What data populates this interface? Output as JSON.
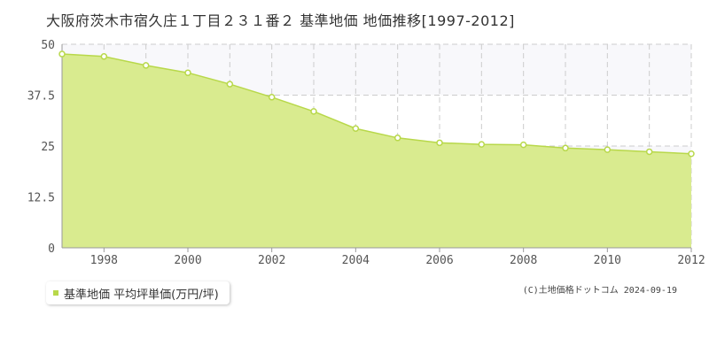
{
  "title": "大阪府茨木市宿久庄１丁目２３１番２ 基準地価 地価推移[1997-2012]",
  "legend": {
    "label": "基準地価 平均坪単価(万円/坪)"
  },
  "copyright": "(C)土地価格ドットコム 2024-09-19",
  "colors": {
    "fill": "#d9eb8f",
    "line": "#b8d84a",
    "band": "#f8f8fb",
    "grid": "#cccccc",
    "marker": "#ffffff"
  },
  "chart_data": {
    "type": "area",
    "title": "",
    "xlabel": "",
    "ylabel": "",
    "xlim": [
      1997,
      2012
    ],
    "ylim": [
      0,
      50
    ],
    "y_ticks": [
      "0",
      "12.5",
      "25",
      "37.5",
      "50"
    ],
    "x_ticks": [
      "1998",
      "2000",
      "2002",
      "2004",
      "2006",
      "2008",
      "2010",
      "2012"
    ],
    "grid": true,
    "series": [
      {
        "name": "基準地価 平均坪単価(万円/坪)",
        "x": [
          1997,
          1998,
          1999,
          2000,
          2001,
          2002,
          2003,
          2004,
          2005,
          2006,
          2007,
          2008,
          2009,
          2010,
          2011,
          2012
        ],
        "values": [
          47.6,
          47.0,
          44.8,
          43.0,
          40.2,
          37.0,
          33.5,
          29.3,
          27.0,
          25.8,
          25.4,
          25.3,
          24.5,
          24.1,
          23.6,
          23.1
        ]
      }
    ]
  }
}
